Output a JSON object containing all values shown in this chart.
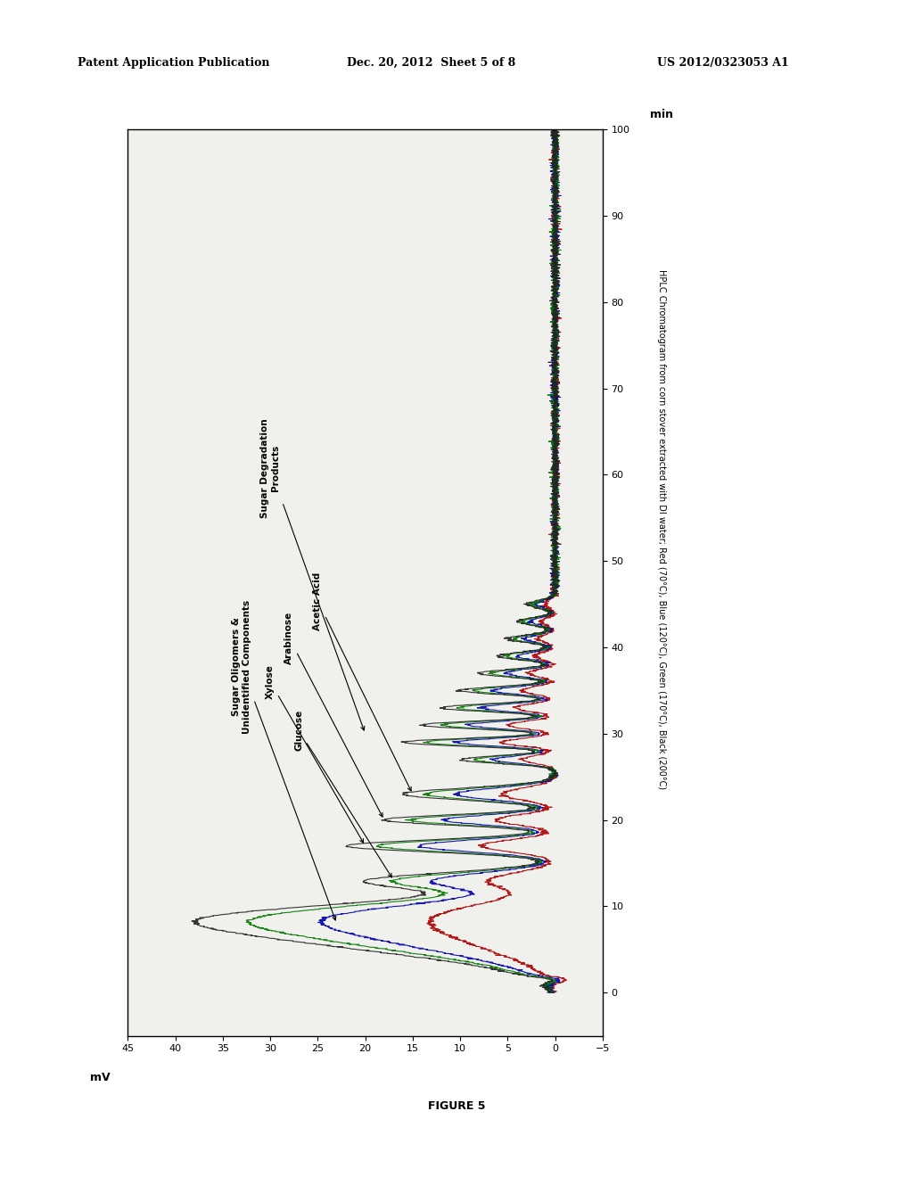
{
  "title_header": "Patent Application Publication",
  "title_date": "Dec. 20, 2012  Sheet 5 of 8",
  "title_patent": "US 2012/0323053 A1",
  "figure_label": "FIGURE 5",
  "caption": "HPLC Chromatogram from corn stover extracted with DI water; Red (70°C), Blue (120°C), Green (170°C), Black (200°C)",
  "ylabel_rotated": "mV",
  "xlabel_rotated": "min",
  "mv_axis": [
    -5.0,
    0.0,
    5.0,
    10.0,
    15.0,
    20.0,
    25.0,
    30.0,
    35.0,
    40.0,
    45.0
  ],
  "min_axis": [
    0,
    10,
    20,
    30,
    40,
    50,
    60,
    70,
    80,
    90,
    100
  ],
  "mv_range": [
    -5.0,
    45.0
  ],
  "min_range": [
    -5,
    100
  ],
  "bg_color": "#ffffff",
  "plot_bg": "#f0f0ec",
  "line_colors": {
    "red": "#aa0000",
    "blue": "#0000aa",
    "green": "#007700",
    "black": "#222222"
  },
  "annotations": [
    {
      "text": "Sugar Oligomers &\nUnidentified Components",
      "peak_t": 8,
      "peak_mv": 25,
      "text_t": 33,
      "text_mv": 32
    },
    {
      "text": "Glucose",
      "peak_t": 13,
      "peak_mv": 18,
      "text_t": 32,
      "text_mv": 22
    },
    {
      "text": "Xylose",
      "peak_t": 17,
      "peak_mv": 22,
      "text_t": 36,
      "text_mv": 26
    },
    {
      "text": "Arabinose",
      "peak_t": 20,
      "peak_mv": 20,
      "text_t": 40,
      "text_mv": 28
    },
    {
      "text": "Acetic Acid",
      "peak_t": 23,
      "peak_mv": 18,
      "text_t": 44,
      "text_mv": 26
    },
    {
      "text": "Sugar Degradation\nProducts",
      "peak_t": 30,
      "peak_mv": 22,
      "text_t": 50,
      "text_mv": 32
    }
  ]
}
